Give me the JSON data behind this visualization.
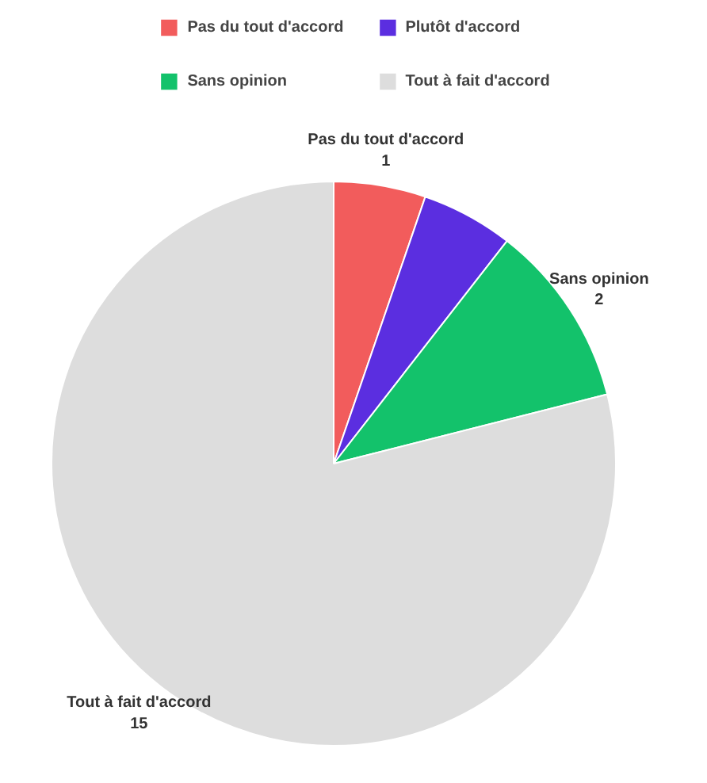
{
  "chart_data": {
    "type": "pie",
    "categories": [
      "Pas du tout d'accord",
      "Plutôt d'accord",
      "Sans opinion",
      "Tout à fait d'accord"
    ],
    "values": [
      1,
      1,
      2,
      15
    ],
    "colors": [
      "#f25c5c",
      "#5b2ee0",
      "#13c26b",
      "#dddddd"
    ],
    "value_labels": [
      "1",
      null,
      "2",
      "15"
    ],
    "legend": "top"
  }
}
